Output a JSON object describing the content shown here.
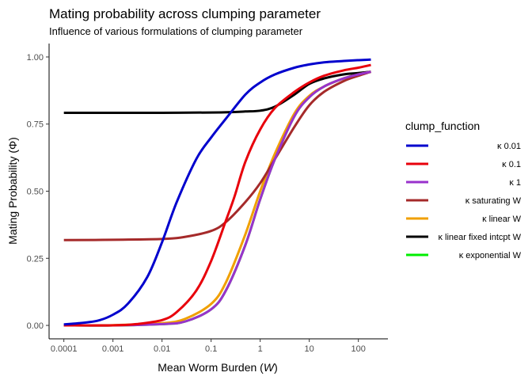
{
  "chart_data": {
    "type": "line",
    "title": "Mating probability across clumping parameter",
    "subtitle": "Influence of various formulations of clumping parameter",
    "xlabel": "Mean Worm Burden (W)",
    "xlabel_parts": {
      "pre": "Mean Worm Burden (",
      "sym": "W",
      "post": ")"
    },
    "ylabel": "Mating Probability (Φ)",
    "ylabel_parts": {
      "pre": "Mating Probability (",
      "sym": "Φ",
      "post": ")"
    },
    "x_scale": "log10",
    "xlim": [
      5e-05,
      400
    ],
    "ylim": [
      -0.05,
      1.05
    ],
    "x_ticks": [
      {
        "value": 0.0001,
        "label": "0.0001"
      },
      {
        "value": 0.001,
        "label": "0.001"
      },
      {
        "value": 0.01,
        "label": "0.01"
      },
      {
        "value": 0.1,
        "label": "0.1"
      },
      {
        "value": 1,
        "label": "1"
      },
      {
        "value": 10,
        "label": "10"
      },
      {
        "value": 100,
        "label": "100"
      }
    ],
    "y_ticks": [
      {
        "value": 0,
        "label": "0.00"
      },
      {
        "value": 0.25,
        "label": "0.25"
      },
      {
        "value": 0.5,
        "label": "0.50"
      },
      {
        "value": 0.75,
        "label": "0.75"
      },
      {
        "value": 1,
        "label": "1.00"
      }
    ],
    "grid": false,
    "legend": {
      "title": "clump_function",
      "position": "right"
    },
    "series": [
      {
        "name": "κ 0.01",
        "color": "#0000cd",
        "x": [
          0.0001,
          0.0002,
          0.0005,
          0.001,
          0.002,
          0.005,
          0.01,
          0.02,
          0.05,
          0.1,
          0.2,
          0.5,
          1,
          2,
          5,
          10,
          20,
          50,
          100,
          180
        ],
        "y": [
          0.004,
          0.008,
          0.018,
          0.04,
          0.08,
          0.18,
          0.31,
          0.46,
          0.62,
          0.7,
          0.77,
          0.86,
          0.905,
          0.935,
          0.96,
          0.972,
          0.98,
          0.985,
          0.988,
          0.99
        ]
      },
      {
        "name": "κ 0.1",
        "color": "#e8000b",
        "x": [
          0.0001,
          0.001,
          0.003,
          0.01,
          0.02,
          0.05,
          0.1,
          0.2,
          0.3,
          0.5,
          1,
          2,
          5,
          10,
          20,
          50,
          100,
          180
        ],
        "y": [
          0.0,
          0.0,
          0.005,
          0.02,
          0.05,
          0.13,
          0.24,
          0.39,
          0.48,
          0.61,
          0.73,
          0.81,
          0.87,
          0.905,
          0.93,
          0.95,
          0.96,
          0.97
        ]
      },
      {
        "name": "κ 1",
        "color": "#9932cc",
        "x": [
          0.0001,
          0.001,
          0.01,
          0.03,
          0.1,
          0.2,
          0.5,
          1,
          2,
          5,
          10,
          20,
          50,
          100,
          180
        ],
        "y": [
          0.0,
          0.0,
          0.005,
          0.015,
          0.06,
          0.13,
          0.3,
          0.47,
          0.62,
          0.78,
          0.85,
          0.89,
          0.92,
          0.935,
          0.945
        ]
      },
      {
        "name": "κ saturating W",
        "color": "#a52a2a",
        "x": [
          0.0001,
          0.001,
          0.01,
          0.03,
          0.1,
          0.2,
          0.5,
          1,
          2,
          5,
          10,
          20,
          50,
          100,
          180
        ],
        "y": [
          0.318,
          0.319,
          0.322,
          0.33,
          0.352,
          0.385,
          0.46,
          0.53,
          0.62,
          0.74,
          0.82,
          0.87,
          0.91,
          0.93,
          0.945
        ]
      },
      {
        "name": "κ linear W",
        "color": "#f0a000",
        "x": [
          0.0001,
          0.001,
          0.01,
          0.03,
          0.1,
          0.2,
          0.5,
          1,
          2,
          5,
          10,
          20,
          50,
          100,
          180
        ],
        "y": [
          0.0,
          0.001,
          0.008,
          0.025,
          0.08,
          0.16,
          0.34,
          0.5,
          0.64,
          0.79,
          0.855,
          0.89,
          0.92,
          0.935,
          0.945
        ]
      },
      {
        "name": "κ linear fixed intcpt W",
        "color": "#000000",
        "x": [
          0.0001,
          0.001,
          0.01,
          0.1,
          0.3,
          0.5,
          1,
          2,
          5,
          10,
          20,
          50,
          100,
          180
        ],
        "y": [
          0.792,
          0.792,
          0.792,
          0.793,
          0.795,
          0.797,
          0.8,
          0.815,
          0.86,
          0.9,
          0.92,
          0.935,
          0.94,
          0.945
        ]
      },
      {
        "name": "κ exponential W",
        "color": "#00ee00",
        "x": [
          0.0001,
          0.001,
          0.01,
          0.03,
          0.1,
          0.2,
          0.5,
          1,
          2,
          5,
          10,
          20,
          50,
          100,
          180
        ],
        "y": [
          0.0,
          0.0,
          0.005,
          0.015,
          0.06,
          0.13,
          0.3,
          0.47,
          0.62,
          0.78,
          0.85,
          0.89,
          0.92,
          0.935,
          0.945
        ]
      }
    ]
  }
}
